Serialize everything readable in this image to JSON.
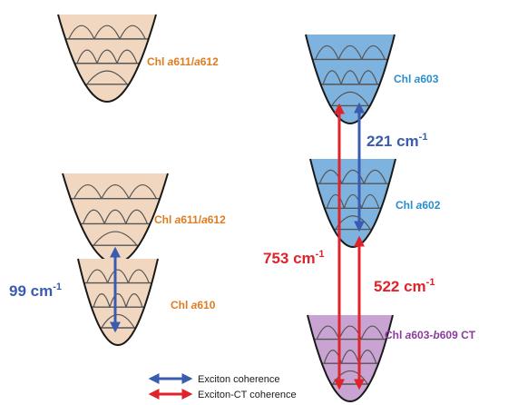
{
  "colors": {
    "orange_fill": "#f1d7bf",
    "orange_text": "#e07b1f",
    "blue_fill": "#7fb3df",
    "blue_text": "#2a8dcc",
    "purple_fill": "#c9a4d2",
    "purple_text": "#8b3c9c",
    "exciton_arrow": "#3a5cb0",
    "ct_arrow": "#e0232a",
    "outline": "#1a1a1a",
    "level": "#555555"
  },
  "labels": {
    "chl_a611_a612_top": [
      {
        "text": "Chl ",
        "italic": false
      },
      {
        "text": "a",
        "italic": true
      },
      {
        "text": "611/",
        "italic": false
      },
      {
        "text": "a",
        "italic": true
      },
      {
        "text": "612",
        "italic": false
      }
    ],
    "chl_a611_a612_mid": [
      {
        "text": "Chl ",
        "italic": false
      },
      {
        "text": "a",
        "italic": true
      },
      {
        "text": "611/",
        "italic": false
      },
      {
        "text": "a",
        "italic": true
      },
      {
        "text": "612",
        "italic": false
      }
    ],
    "chl_a610": [
      {
        "text": "Chl ",
        "italic": false
      },
      {
        "text": "a",
        "italic": true
      },
      {
        "text": "610",
        "italic": false
      }
    ],
    "chl_a603": [
      {
        "text": "Chl ",
        "italic": false
      },
      {
        "text": "a",
        "italic": true
      },
      {
        "text": "603",
        "italic": false
      }
    ],
    "chl_a602": [
      {
        "text": "Chl ",
        "italic": false
      },
      {
        "text": "a",
        "italic": true
      },
      {
        "text": "602",
        "italic": false
      }
    ],
    "chl_a603_b609_ct": [
      {
        "text": "Chl ",
        "italic": false
      },
      {
        "text": "a",
        "italic": true
      },
      {
        "text": "603-",
        "italic": false
      },
      {
        "text": "b",
        "italic": true
      },
      {
        "text": "609 CT",
        "italic": false
      }
    ]
  },
  "energies": {
    "e99": {
      "value": "99 cm",
      "exp": "-1"
    },
    "e221": {
      "value": "221 cm",
      "exp": "-1"
    },
    "e753": {
      "value": "753 cm",
      "exp": "-1"
    },
    "e522": {
      "value": "522 cm",
      "exp": "-1"
    }
  },
  "legend": {
    "exciton": "Exciton coherence",
    "exciton_ct": "Exciton-CT coherence"
  }
}
